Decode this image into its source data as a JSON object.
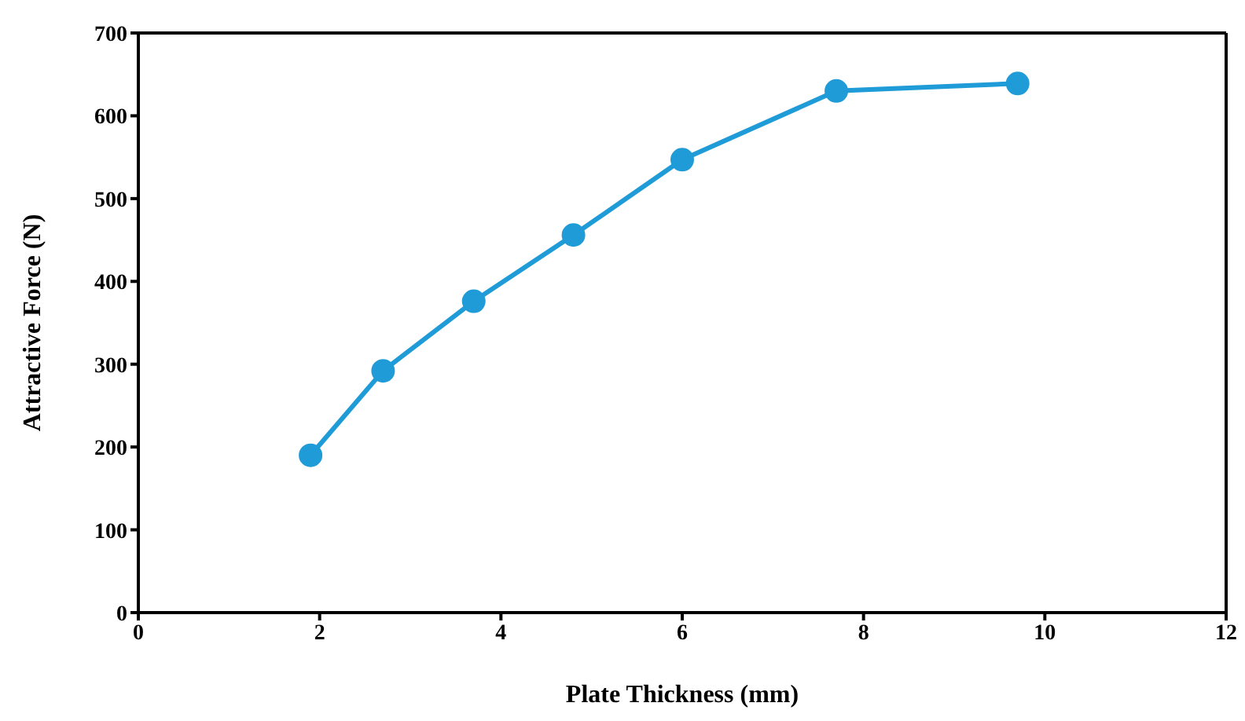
{
  "chart_data": {
    "type": "line",
    "xlabel": "Plate Thickness (mm)",
    "ylabel": "Attractive Force (N)",
    "x": [
      1.9,
      2.7,
      3.7,
      4.8,
      6,
      7.7,
      9.7
    ],
    "series": [
      {
        "color": "#1f9bd7",
        "values": [
          190,
          292,
          376,
          456,
          547,
          630,
          639
        ]
      }
    ],
    "xlim": [
      0,
      12
    ],
    "xticks": [
      0,
      2,
      4,
      6,
      8,
      10,
      12
    ],
    "ylim": [
      0,
      700
    ],
    "yticks": [
      0,
      100,
      200,
      300,
      400,
      500,
      600,
      700
    ],
    "grid": false,
    "legend": false,
    "marker": "circle",
    "line_style": "solid"
  }
}
